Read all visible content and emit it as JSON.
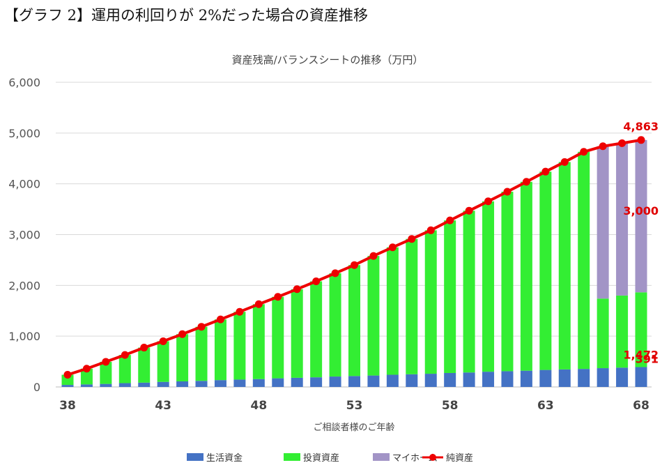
{
  "page": {
    "heading": "【グラフ 2】運用の利回りが 2%だった場合の資産推移"
  },
  "chart_data": {
    "type": "bar",
    "stacked": true,
    "title": "資産残高/バランスシートの推移（万円）",
    "xlabel": "ご相談者様のご年齢",
    "ylabel": "",
    "ylim": [
      0,
      6000
    ],
    "yticks": [
      0,
      1000,
      2000,
      3000,
      4000,
      5000,
      6000
    ],
    "ytick_labels": [
      "0",
      "1,000",
      "2,000",
      "3,000",
      "4,000",
      "5,000",
      "6,000"
    ],
    "xtick_labels": [
      "38",
      "43",
      "48",
      "53",
      "58",
      "63",
      "68"
    ],
    "grid": true,
    "legend_position": "bottom",
    "categories": [
      38,
      39,
      40,
      41,
      42,
      43,
      44,
      45,
      46,
      47,
      48,
      49,
      50,
      51,
      52,
      53,
      54,
      55,
      56,
      57,
      58,
      59,
      60,
      61,
      62,
      63,
      64,
      65,
      66,
      67,
      68
    ],
    "series": [
      {
        "name": "生活資金",
        "kind": "bar",
        "color": "#4472c4",
        "values": [
          40,
          50,
          60,
          75,
          85,
          100,
          110,
          120,
          135,
          145,
          155,
          170,
          180,
          190,
          205,
          215,
          225,
          240,
          250,
          260,
          275,
          285,
          300,
          310,
          320,
          335,
          345,
          355,
          370,
          380,
          391
        ]
      },
      {
        "name": "投資資産",
        "kind": "bar",
        "color": "#33ee33",
        "values": [
          200,
          310,
          435,
          555,
          690,
          800,
          930,
          1065,
          1195,
          1335,
          1475,
          1605,
          1745,
          1890,
          2035,
          2185,
          2355,
          2510,
          2665,
          2825,
          3005,
          3185,
          3355,
          3535,
          3720,
          3905,
          4085,
          4275,
          1370,
          1420,
          1472
        ]
      },
      {
        "name": "マイホーム",
        "kind": "bar",
        "color": "#a294c6",
        "values": [
          0,
          0,
          0,
          0,
          0,
          0,
          0,
          0,
          0,
          0,
          0,
          0,
          0,
          0,
          0,
          0,
          0,
          0,
          0,
          0,
          0,
          0,
          0,
          0,
          0,
          0,
          0,
          0,
          3000,
          3000,
          3000
        ]
      },
      {
        "name": "純資産",
        "kind": "line",
        "color": "#ee0000",
        "values": [
          240,
          360,
          495,
          630,
          775,
          900,
          1040,
          1185,
          1330,
          1480,
          1630,
          1775,
          1925,
          2080,
          2240,
          2400,
          2580,
          2750,
          2915,
          3085,
          3280,
          3470,
          3655,
          3845,
          4040,
          4240,
          4430,
          4630,
          4740,
          4800,
          4863
        ]
      }
    ],
    "annotations": [
      {
        "text": "4,863",
        "series": "純資産",
        "x": 68,
        "y": 4863
      },
      {
        "text": "3,000",
        "series": "マイホーム",
        "x": 68,
        "y": 3000
      },
      {
        "text": "1,472",
        "series": "投資資産",
        "x": 68,
        "y": 1472
      },
      {
        "text": "391",
        "series": "生活資金",
        "x": 68,
        "y": 391
      }
    ]
  }
}
